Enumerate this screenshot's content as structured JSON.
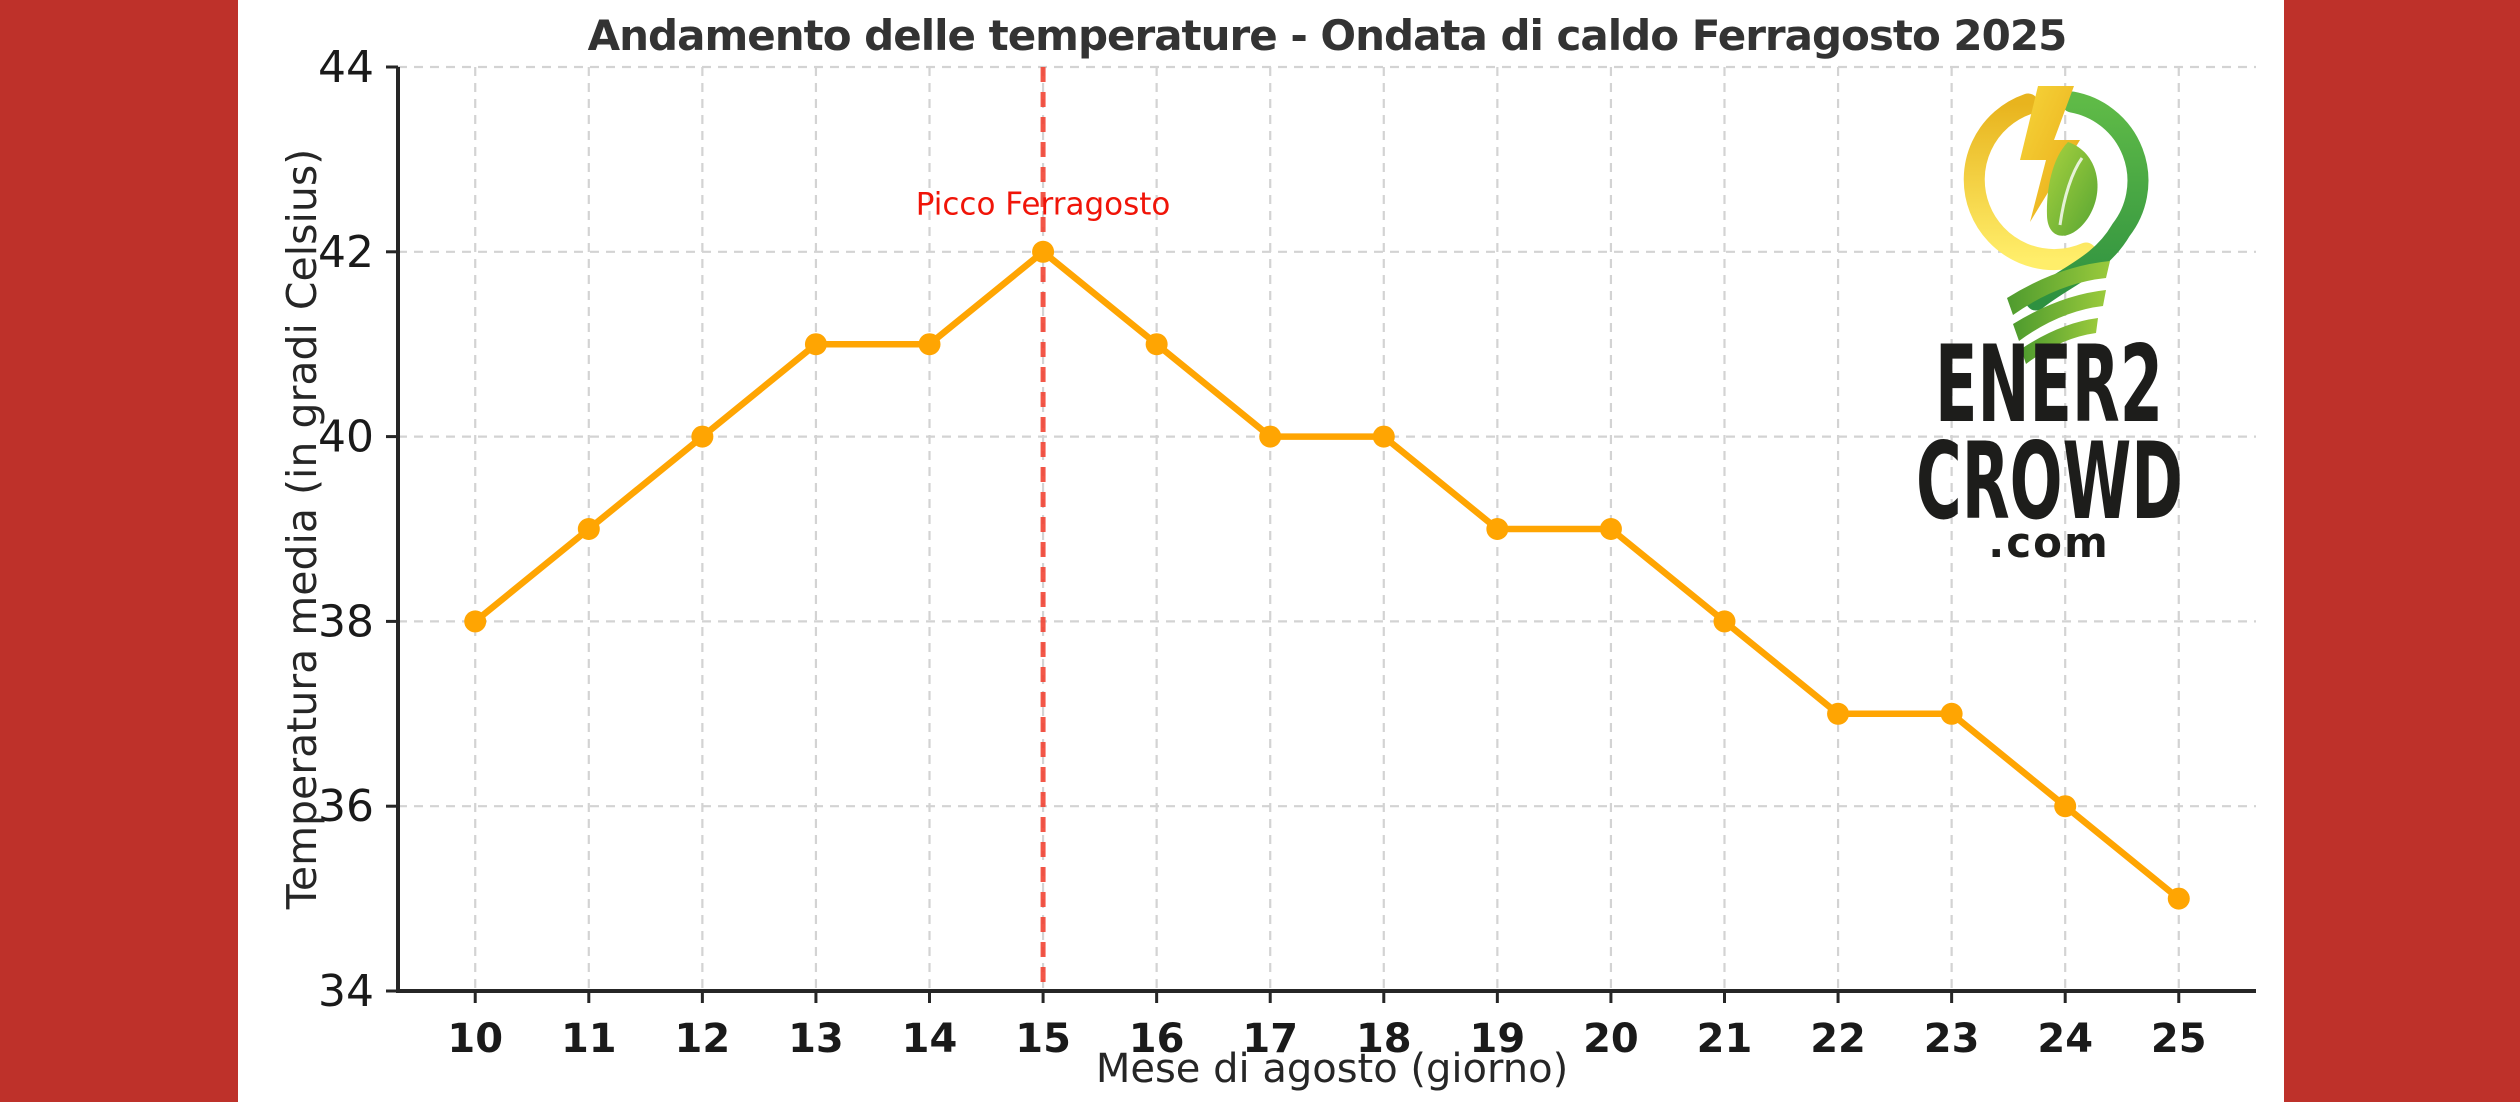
{
  "page": {
    "side_band_color": "#BE312A",
    "background_color": "#FFFFFF"
  },
  "colors": {
    "line": "#FFA502",
    "grid": "#D3D3D3",
    "axis": "#262626",
    "title": "#333333",
    "tick": "#1A1A1A",
    "vline": "#F24535",
    "annotation": "#F01408"
  },
  "logo": {
    "line1": "ENER2",
    "line2": "CROWD",
    "line3": ".com",
    "text_color": "#1D1D1B",
    "bulb_yellow": "#FFE14D",
    "bulb_green": "#3FA33C",
    "ribbon_green": "#8DC63F"
  },
  "chart_data": {
    "type": "line",
    "title": "Andamento delle temperature - Ondata di caldo Ferragosto 2025",
    "xlabel": "Mese di agosto (giorno)",
    "ylabel": "Temperatura media (in gradi Celsius)",
    "x": [
      10,
      11,
      12,
      13,
      14,
      15,
      16,
      17,
      18,
      19,
      20,
      21,
      22,
      23,
      24,
      25
    ],
    "series": [
      {
        "name": "Temperatura media",
        "values": [
          38,
          39,
          40,
          41,
          41,
          42,
          41,
          40,
          40,
          39,
          39,
          38,
          37,
          37,
          36,
          35
        ]
      }
    ],
    "xlim": [
      9.32,
      25.68
    ],
    "ylim": [
      34,
      44
    ],
    "yticks": [
      34,
      36,
      38,
      40,
      42,
      44
    ],
    "grid": true,
    "legend": false,
    "marker": "circle",
    "annotation": {
      "text": "Picco Ferragosto",
      "x": 15,
      "y": 42.5,
      "color": "#F01408"
    },
    "vline": {
      "x": 15,
      "style": "dashed",
      "color": "#F24535"
    }
  }
}
